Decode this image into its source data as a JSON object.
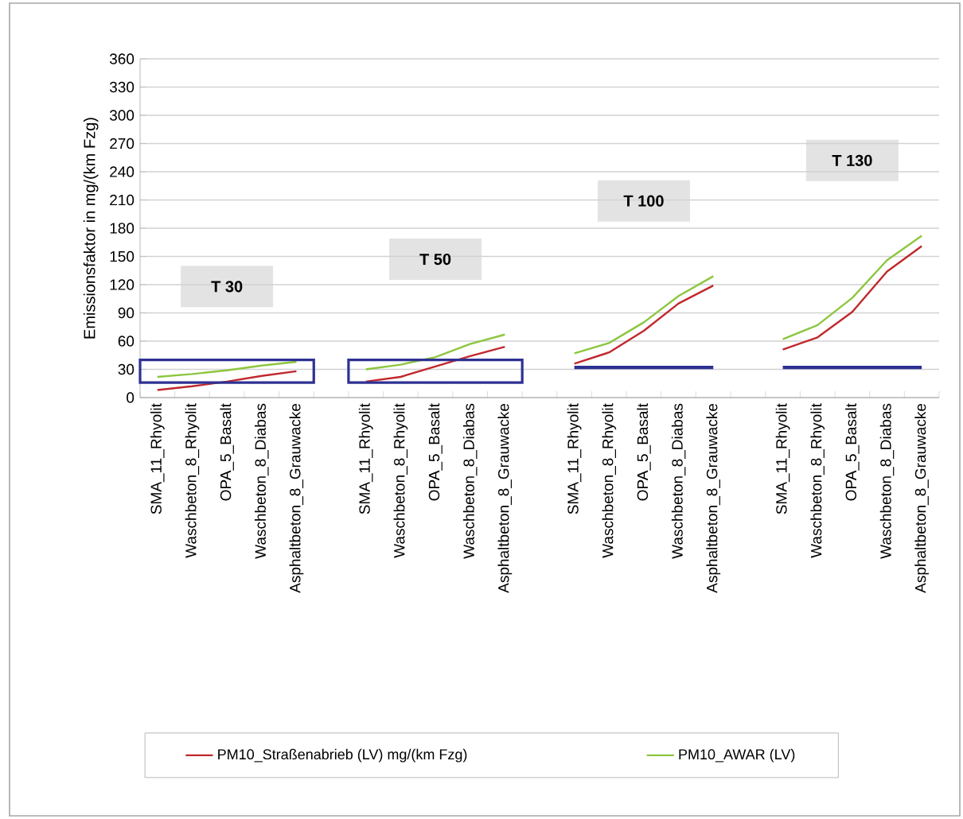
{
  "chart_data": {
    "type": "line",
    "ylabel": "Emissionsfaktor in mg/(km Fzg)",
    "categories": [
      "SMA_11_Rhyolit",
      "Waschbeton_8_Rhyolit",
      "OPA_5_Basalt",
      "Waschbeton_8_Diabas",
      "Asphaltbeton_8_Grauwacke",
      null,
      "SMA_11_Rhyolit",
      "Waschbeton_8_Rhyolit",
      "OPA_5_Basalt",
      "Waschbeton_8_Diabas",
      "Asphaltbeton_8_Grauwacke",
      null,
      "SMA_11_Rhyolit",
      "Waschbeton_8_Rhyolit",
      "OPA_5_Basalt",
      "Waschbeton_8_Diabas",
      "Asphaltbeton_8_Grauwacke",
      null,
      "SMA_11_Rhyolit",
      "Waschbeton_8_Rhyolit",
      "OPA_5_Basalt",
      "Waschbeton_8_Diabas",
      "Asphaltbeton_8_Grauwacke"
    ],
    "series": [
      {
        "name": "PM10_Straßenabrieb (LV) mg/(km Fzg)",
        "color": "#c0282d",
        "values": [
          8,
          12,
          17,
          23,
          28,
          null,
          17,
          22,
          33,
          44,
          54,
          null,
          36,
          48,
          71,
          100,
          119,
          null,
          51,
          64,
          91,
          134,
          161
        ]
      },
      {
        "name": "PM10_AWAR (LV)",
        "color": "#8dc63f",
        "values": [
          22,
          25,
          29,
          34,
          38,
          null,
          30,
          35,
          43,
          57,
          67,
          null,
          47,
          58,
          80,
          108,
          129,
          null,
          62,
          77,
          106,
          146,
          172
        ]
      },
      {
        "color": "#2e3192",
        "values": [
          null,
          null,
          null,
          null,
          null,
          null,
          null,
          null,
          null,
          null,
          null,
          null,
          32,
          32,
          32,
          32,
          32,
          null,
          32,
          32,
          32,
          32,
          32
        ]
      }
    ],
    "annotations": [
      "T 30",
      "T 50",
      "T 100",
      "T 130"
    ],
    "ylim": [
      0,
      360
    ],
    "yticks": [
      0,
      30,
      60,
      90,
      120,
      150,
      180,
      210,
      240,
      270,
      300,
      330,
      360
    ],
    "grid": "y",
    "legend": "bottom",
    "marker": "none",
    "line_style": "solid"
  }
}
